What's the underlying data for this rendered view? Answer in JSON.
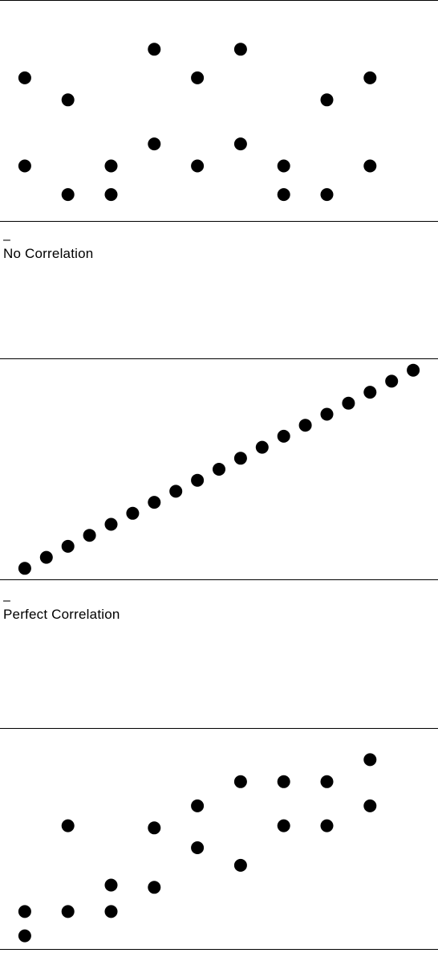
{
  "chart_data": [
    {
      "type": "scatter",
      "title": "No Correlation",
      "title_mark": "–",
      "xlim": [
        0,
        20
      ],
      "ylim": [
        0,
        10
      ],
      "grid": false,
      "points": [
        {
          "x": 1,
          "y": 6.5
        },
        {
          "x": 1,
          "y": 2.5
        },
        {
          "x": 3,
          "y": 5.5
        },
        {
          "x": 3,
          "y": 1.2
        },
        {
          "x": 5,
          "y": 2.5
        },
        {
          "x": 5,
          "y": 1.2
        },
        {
          "x": 7,
          "y": 7.8
        },
        {
          "x": 7,
          "y": 3.5
        },
        {
          "x": 9,
          "y": 6.5
        },
        {
          "x": 9,
          "y": 2.5
        },
        {
          "x": 11,
          "y": 7.8
        },
        {
          "x": 11,
          "y": 3.5
        },
        {
          "x": 13,
          "y": 2.5
        },
        {
          "x": 13,
          "y": 1.2
        },
        {
          "x": 15,
          "y": 5.5
        },
        {
          "x": 15,
          "y": 1.2
        },
        {
          "x": 17,
          "y": 6.5
        },
        {
          "x": 17,
          "y": 2.5
        }
      ],
      "color": "#000000"
    },
    {
      "type": "scatter",
      "title": "Perfect Correlation",
      "title_mark": "–",
      "xlim": [
        0,
        20
      ],
      "ylim": [
        0,
        10
      ],
      "grid": false,
      "points": [
        {
          "x": 1,
          "y": 0.5
        },
        {
          "x": 2,
          "y": 1.0
        },
        {
          "x": 3,
          "y": 1.5
        },
        {
          "x": 4,
          "y": 2.0
        },
        {
          "x": 5,
          "y": 2.5
        },
        {
          "x": 6,
          "y": 3.0
        },
        {
          "x": 7,
          "y": 3.5
        },
        {
          "x": 8,
          "y": 4.0
        },
        {
          "x": 9,
          "y": 4.5
        },
        {
          "x": 10,
          "y": 5.0
        },
        {
          "x": 11,
          "y": 5.5
        },
        {
          "x": 12,
          "y": 6.0
        },
        {
          "x": 13,
          "y": 6.5
        },
        {
          "x": 14,
          "y": 7.0
        },
        {
          "x": 15,
          "y": 7.5
        },
        {
          "x": 16,
          "y": 8.0
        },
        {
          "x": 17,
          "y": 8.5
        },
        {
          "x": 18,
          "y": 9.0
        },
        {
          "x": 19,
          "y": 9.5
        }
      ],
      "color": "#000000"
    },
    {
      "type": "scatter",
      "title": "",
      "xlim": [
        0,
        20
      ],
      "ylim": [
        0,
        10
      ],
      "grid": false,
      "points": [
        {
          "x": 1,
          "y": 0.6
        },
        {
          "x": 1,
          "y": 1.7
        },
        {
          "x": 3,
          "y": 1.7
        },
        {
          "x": 3,
          "y": 5.6
        },
        {
          "x": 5,
          "y": 1.7
        },
        {
          "x": 5,
          "y": 2.9
        },
        {
          "x": 7,
          "y": 2.8
        },
        {
          "x": 7,
          "y": 5.5
        },
        {
          "x": 9,
          "y": 4.6
        },
        {
          "x": 9,
          "y": 6.5
        },
        {
          "x": 11,
          "y": 3.8
        },
        {
          "x": 11,
          "y": 7.6
        },
        {
          "x": 13,
          "y": 5.6
        },
        {
          "x": 13,
          "y": 7.6
        },
        {
          "x": 15,
          "y": 5.6
        },
        {
          "x": 15,
          "y": 7.6
        },
        {
          "x": 17,
          "y": 6.5
        },
        {
          "x": 17,
          "y": 8.6
        }
      ],
      "color": "#000000"
    }
  ]
}
